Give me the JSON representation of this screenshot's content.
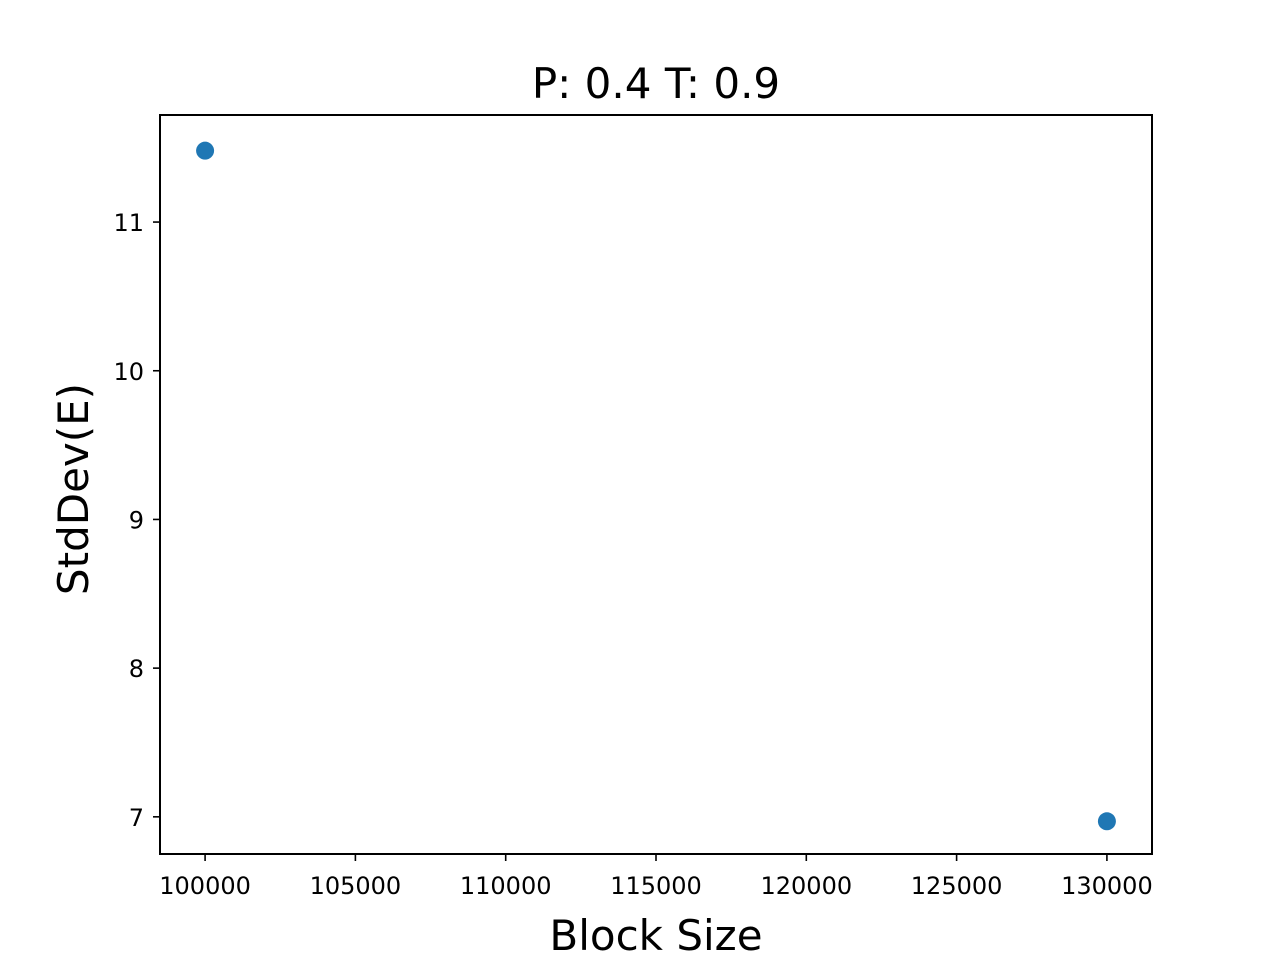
{
  "chart_data": {
    "type": "scatter",
    "title": "P: 0.4 T: 0.9",
    "xlabel": "Block Size",
    "ylabel": "StdDev(E)",
    "xlim": [
      98500,
      131500
    ],
    "ylim": [
      6.75,
      11.72
    ],
    "grid": false,
    "legend": "none",
    "x_ticks": [
      100000,
      105000,
      110000,
      115000,
      120000,
      125000,
      130000
    ],
    "x_tick_labels": [
      "100000",
      "105000",
      "110000",
      "115000",
      "120000",
      "125000",
      "130000"
    ],
    "y_ticks": [
      7,
      8,
      9,
      10,
      11
    ],
    "y_tick_labels": [
      "7",
      "8",
      "9",
      "10",
      "11"
    ],
    "series": [
      {
        "color": "#1f77b4",
        "points": [
          {
            "x": 100000,
            "y": 11.48
          },
          {
            "x": 130000,
            "y": 6.97
          }
        ]
      }
    ]
  }
}
